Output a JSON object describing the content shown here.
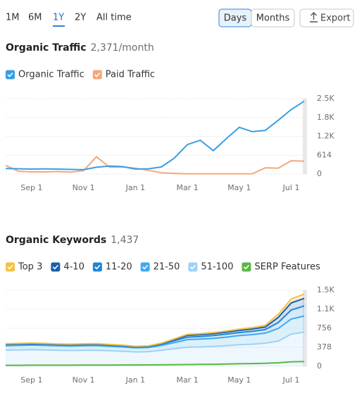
{
  "controls": {
    "ranges": [
      "1M",
      "6M",
      "1Y",
      "2Y",
      "All time"
    ],
    "granularity": [
      "Days",
      "Months"
    ],
    "export": "Export"
  },
  "chart_data": [
    {
      "type": "line",
      "title": "Organic Traffic",
      "subtitle": "2,371/month",
      "categories": [
        null,
        null,
        "Sep 1",
        null,
        null,
        null,
        "Nov 1",
        null,
        null,
        null,
        "Jan 1",
        null,
        null,
        null,
        "Mar 1",
        null,
        null,
        null,
        "May 1",
        null,
        null,
        null,
        "Jul 1",
        null
      ],
      "series": [
        {
          "name": "Organic Traffic",
          "color": "#3a9ee4",
          "values": [
            180,
            170,
            160,
            165,
            160,
            150,
            140,
            220,
            260,
            240,
            160,
            170,
            230,
            520,
            960,
            1100,
            760,
            1150,
            1520,
            1380,
            1420,
            1750,
            2100,
            2371
          ]
        },
        {
          "name": "Paid Traffic",
          "color": "#f5a77a",
          "values": [
            280,
            90,
            70,
            70,
            80,
            60,
            110,
            560,
            220,
            230,
            190,
            120,
            40,
            20,
            5,
            5,
            5,
            5,
            5,
            10,
            200,
            190,
            430,
            420
          ]
        }
      ],
      "ylim": [
        0,
        2456
      ],
      "yticks": [
        0,
        614,
        {
          "value": 1228,
          "label": "1.2K"
        },
        {
          "value": 1842,
          "label": "1.8K"
        },
        {
          "value": 2456,
          "label": "2.5K"
        }
      ],
      "grid": true
    },
    {
      "type": "stacked-area",
      "title": "Organic Keywords",
      "subtitle": "1,437",
      "categories": [
        null,
        null,
        "Sep 1",
        null,
        null,
        null,
        "Nov 1",
        null,
        null,
        null,
        "Jan 1",
        null,
        null,
        null,
        "Mar 1",
        null,
        null,
        null,
        "May 1",
        null,
        null,
        null,
        "Jul 1",
        null
      ],
      "series": [
        {
          "name": "Top 3",
          "color": "#f3c242",
          "values": [
            6,
            6,
            6,
            6,
            6,
            6,
            6,
            6,
            5,
            5,
            5,
            5,
            7,
            12,
            20,
            21,
            22,
            24,
            26,
            30,
            35,
            60,
            80,
            87
          ]
        },
        {
          "name": "4-10",
          "color": "#1a5fa8",
          "values": [
            12,
            12,
            12,
            12,
            11,
            11,
            12,
            12,
            11,
            11,
            10,
            10,
            14,
            25,
            35,
            36,
            38,
            40,
            42,
            45,
            50,
            100,
            140,
            150
          ]
        },
        {
          "name": "11-20",
          "color": "#1f86d8",
          "values": [
            22,
            22,
            23,
            22,
            22,
            21,
            22,
            22,
            21,
            20,
            19,
            20,
            25,
            40,
            50,
            52,
            55,
            58,
            60,
            65,
            70,
            120,
            180,
            200
          ]
        },
        {
          "name": "21-50",
          "color": "#3eaaf0",
          "values": [
            90,
            90,
            92,
            90,
            88,
            88,
            90,
            92,
            88,
            85,
            80,
            82,
            95,
            120,
            150,
            155,
            160,
            170,
            180,
            190,
            200,
            250,
            300,
            320
          ]
        },
        {
          "name": "51-100",
          "color": "#9dd2f5",
          "values": [
            320,
            325,
            330,
            325,
            320,
            315,
            318,
            320,
            310,
            300,
            285,
            290,
            320,
            350,
            380,
            385,
            395,
            410,
            430,
            440,
            460,
            500,
            640,
            680
          ]
        },
        {
          "name": "SERP Features",
          "color": "#5bb741",
          "stack": false,
          "values": [
            20,
            20,
            22,
            22,
            23,
            23,
            24,
            25,
            25,
            26,
            26,
            28,
            30,
            32,
            35,
            38,
            40,
            45,
            50,
            55,
            60,
            70,
            90,
            95
          ]
        }
      ],
      "ylim": [
        0,
        1512
      ],
      "yticks": [
        0,
        378,
        756,
        {
          "value": 1134,
          "label": "1.1K"
        },
        {
          "value": 1512,
          "label": "1.5K"
        }
      ],
      "grid": true
    }
  ]
}
